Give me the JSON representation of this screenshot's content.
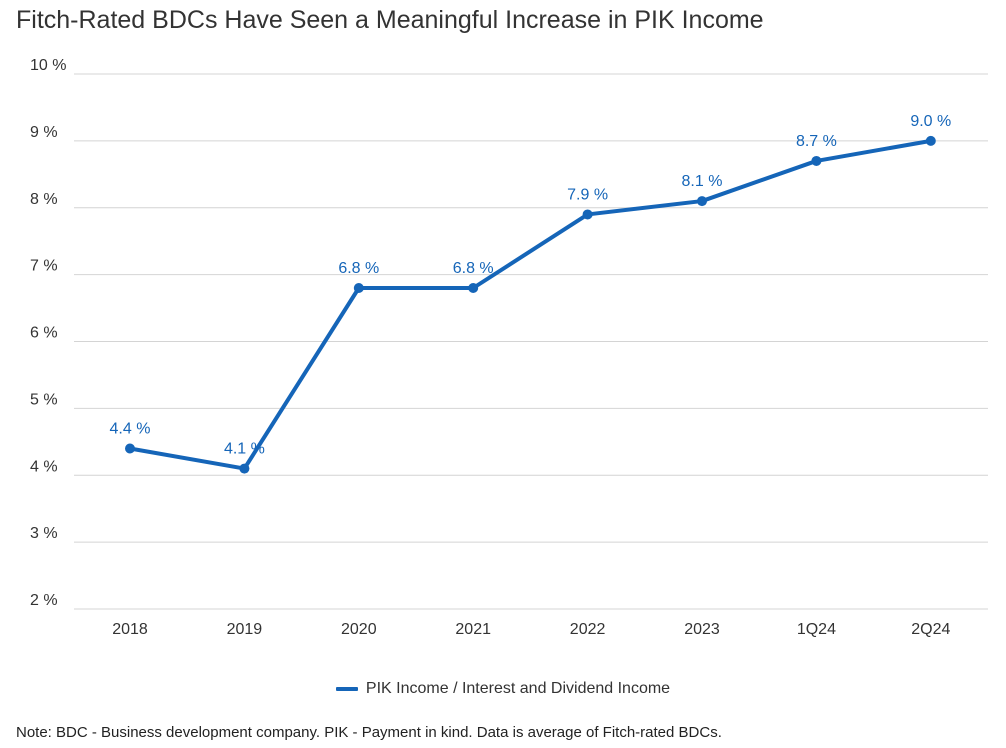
{
  "title": "Fitch-Rated BDCs Have Seen a Meaningful Increase in PIK Income",
  "note": "Note: BDC - Business development company. PIK - Payment in kind. Data is average of Fitch-rated BDCs.",
  "colors": {
    "series": "#1565b8",
    "grid": "#d4d4d4",
    "text": "#333333"
  },
  "chart_data": {
    "type": "line",
    "title": "Fitch-Rated BDCs Have Seen a Meaningful Increase in PIK Income",
    "xlabel": "",
    "ylabel": "",
    "ylim": [
      2,
      10
    ],
    "yticks": [
      10,
      9,
      8,
      7,
      6,
      5,
      4,
      3,
      2
    ],
    "ytick_labels": [
      "10 %",
      "9 %",
      "8 %",
      "7 %",
      "6 %",
      "5 %",
      "4 %",
      "3 %",
      "2 %"
    ],
    "categories": [
      "2018",
      "2019",
      "2020",
      "2021",
      "2022",
      "2023",
      "1Q24",
      "2Q24"
    ],
    "grid": true,
    "legend_position": "bottom-center",
    "series": [
      {
        "name": "PIK Income / Interest and Dividend Income",
        "values": [
          4.4,
          4.1,
          6.8,
          6.8,
          7.9,
          8.1,
          8.7,
          9.0
        ],
        "labels": [
          "4.4 %",
          "4.1 %",
          "6.8 %",
          "6.8 %",
          "7.9 %",
          "8.1 %",
          "8.7 %",
          "9.0 %"
        ]
      }
    ]
  }
}
